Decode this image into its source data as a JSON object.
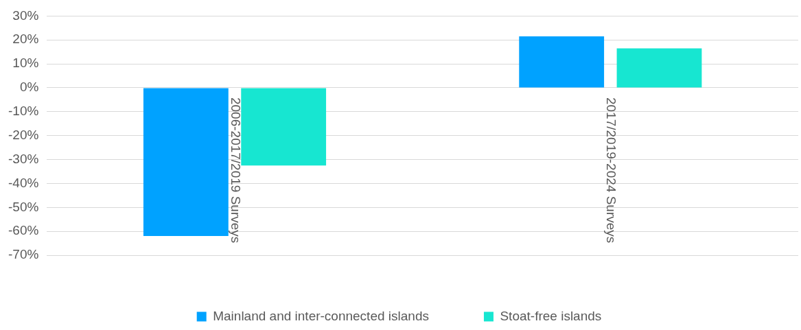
{
  "chart_data": {
    "type": "bar",
    "categories": [
      "2006-2017/2019 Surveys",
      "2017/2019-2024 Surveys"
    ],
    "series": [
      {
        "name": "Mainland and inter-connected islands",
        "color": "#00a2ff",
        "values": [
          -62,
          21.5
        ]
      },
      {
        "name": "Stoat-free islands",
        "color": "#17e6d1",
        "values": [
          -32.5,
          16.5
        ]
      }
    ],
    "ylim": [
      -70,
      30
    ],
    "yticks": [
      {
        "value": -70,
        "label": "-70%"
      },
      {
        "value": -60,
        "label": "-60%"
      },
      {
        "value": -50,
        "label": "-50%"
      },
      {
        "value": -40,
        "label": "-40%"
      },
      {
        "value": -30,
        "label": "-30%"
      },
      {
        "value": -20,
        "label": "-20%"
      },
      {
        "value": -10,
        "label": "-10%"
      },
      {
        "value": 0,
        "label": "0%"
      },
      {
        "value": 10,
        "label": "10%"
      },
      {
        "value": 20,
        "label": "20%"
      },
      {
        "value": 30,
        "label": "30%"
      }
    ],
    "grid": "y",
    "legend": "bottom"
  }
}
